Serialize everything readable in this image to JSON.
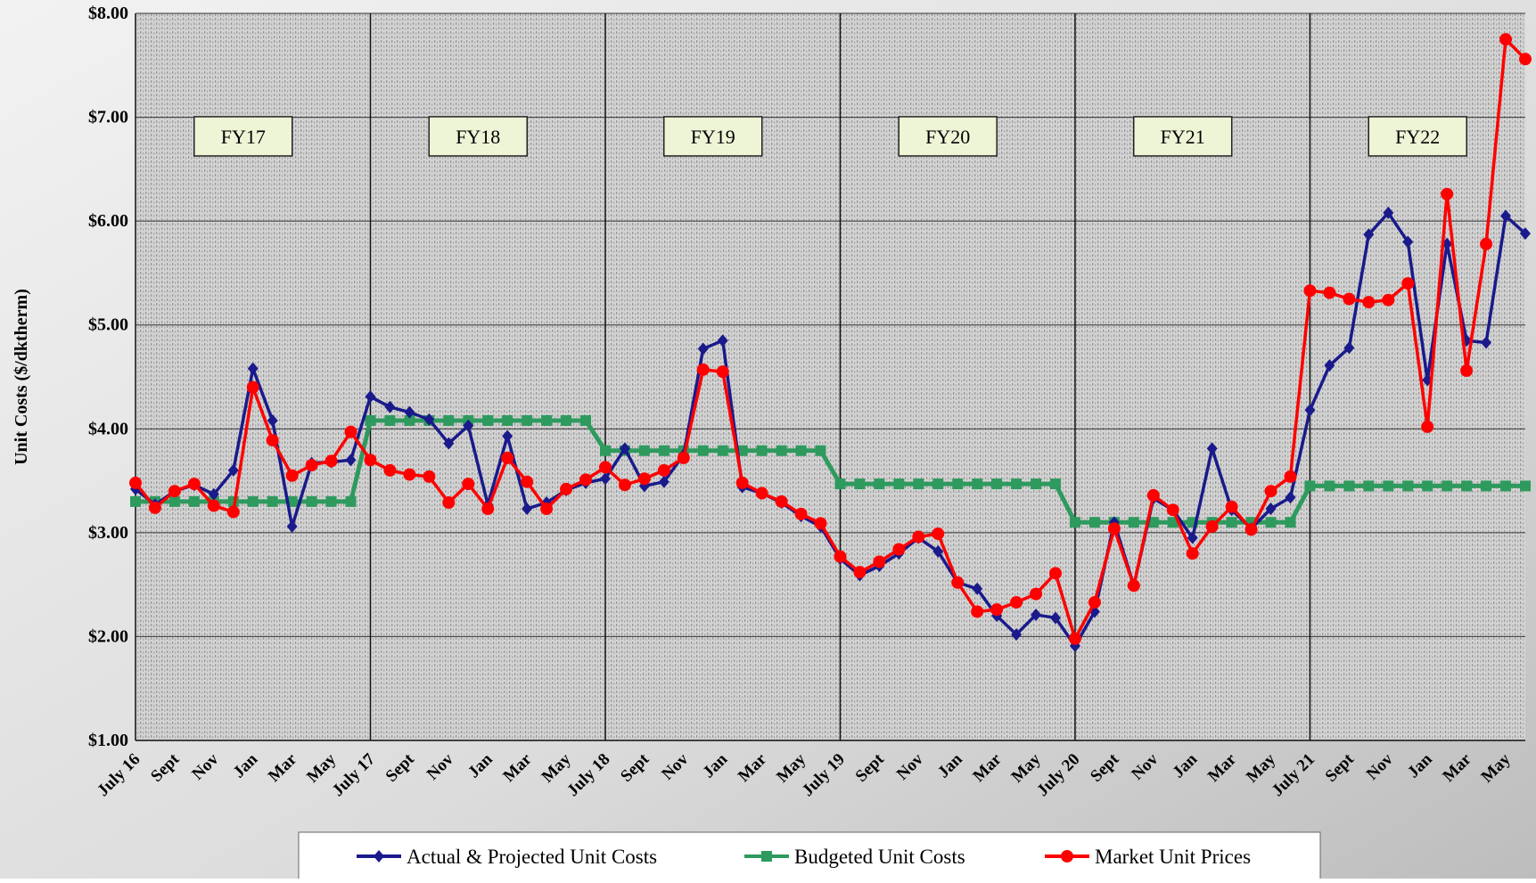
{
  "chart_data": {
    "type": "line",
    "ylabel": "Unit Costs ($/dktherm)",
    "annotations": [
      "FY17",
      "FY18",
      "FY19",
      "FY20",
      "FY21",
      "FY22"
    ],
    "categories": [
      "July 16",
      null,
      "Sept",
      null,
      "Nov",
      null,
      "Jan",
      null,
      "Mar",
      null,
      "May",
      null,
      "July 17",
      null,
      "Sept",
      null,
      "Nov",
      null,
      "Jan",
      null,
      "Mar",
      null,
      "May",
      null,
      "July 18",
      null,
      "Sept",
      null,
      "Nov",
      null,
      "Jan",
      null,
      "Mar",
      null,
      "May",
      null,
      "July 19",
      null,
      "Sept",
      null,
      "Nov",
      null,
      "Jan",
      null,
      "Mar",
      null,
      "May",
      null,
      "July 20",
      null,
      "Sept",
      null,
      "Nov",
      null,
      "Jan",
      null,
      "Mar",
      null,
      "May",
      null,
      "July 21",
      null,
      "Sept",
      null,
      "Nov",
      null,
      "Jan",
      null,
      "Mar",
      null,
      "May",
      null
    ],
    "series": [
      {
        "name": "Actual & Projected Unit Costs",
        "color": "#1a1a8c",
        "marker": "diamond",
        "values": [
          3.42,
          3.27,
          3.4,
          3.46,
          3.37,
          3.6,
          4.58,
          4.08,
          3.06,
          3.67,
          3.68,
          3.7,
          4.31,
          4.21,
          4.16,
          4.09,
          3.86,
          4.03,
          3.27,
          3.93,
          3.23,
          3.29,
          3.41,
          3.48,
          3.52,
          3.81,
          3.45,
          3.49,
          3.75,
          4.77,
          4.85,
          3.44,
          3.38,
          3.29,
          3.16,
          3.06,
          2.75,
          2.59,
          2.68,
          2.8,
          2.95,
          2.82,
          2.52,
          2.46,
          2.2,
          2.02,
          2.21,
          2.18,
          1.91,
          2.24,
          3.1,
          2.49,
          3.33,
          3.22,
          2.95,
          3.81,
          3.22,
          3.04,
          3.23,
          3.34,
          4.18,
          4.61,
          4.78,
          5.87,
          6.08,
          5.8,
          4.47,
          5.78,
          4.85,
          4.83,
          6.05,
          5.88
        ]
      },
      {
        "name": "Budgeted Unit Costs",
        "color": "#2e9a5e",
        "marker": "square",
        "values": [
          3.3,
          3.3,
          3.3,
          3.3,
          3.3,
          3.3,
          3.3,
          3.3,
          3.3,
          3.3,
          3.3,
          3.3,
          4.08,
          4.08,
          4.08,
          4.08,
          4.08,
          4.08,
          4.08,
          4.08,
          4.08,
          4.08,
          4.08,
          4.08,
          3.79,
          3.79,
          3.79,
          3.79,
          3.79,
          3.79,
          3.79,
          3.79,
          3.79,
          3.79,
          3.79,
          3.79,
          3.47,
          3.47,
          3.47,
          3.47,
          3.47,
          3.47,
          3.47,
          3.47,
          3.47,
          3.47,
          3.47,
          3.47,
          3.1,
          3.1,
          3.1,
          3.1,
          3.1,
          3.1,
          3.1,
          3.1,
          3.1,
          3.1,
          3.1,
          3.1,
          3.45,
          3.45,
          3.45,
          3.45,
          3.45,
          3.45,
          3.45,
          3.45,
          3.45,
          3.45,
          3.45,
          3.45
        ]
      },
      {
        "name": "Market Unit Prices",
        "color": "#ff0000",
        "marker": "circle",
        "values": [
          3.48,
          3.24,
          3.4,
          3.47,
          3.26,
          3.2,
          4.4,
          3.89,
          3.55,
          3.65,
          3.69,
          3.97,
          3.7,
          3.6,
          3.56,
          3.54,
          3.29,
          3.47,
          3.23,
          3.72,
          3.49,
          3.23,
          3.42,
          3.51,
          3.63,
          3.46,
          3.52,
          3.6,
          3.72,
          4.57,
          4.55,
          3.48,
          3.38,
          3.3,
          3.18,
          3.09,
          2.77,
          2.62,
          2.72,
          2.84,
          2.96,
          2.99,
          2.52,
          2.24,
          2.26,
          2.33,
          2.41,
          2.61,
          1.98,
          2.33,
          3.04,
          2.49,
          3.36,
          3.22,
          2.8,
          3.06,
          3.25,
          3.03,
          3.4,
          3.54,
          5.33,
          5.31,
          5.25,
          5.22,
          5.24,
          5.4,
          4.02,
          6.26,
          4.56,
          5.78,
          7.75,
          7.56
        ]
      }
    ],
    "ylim": [
      1,
      8
    ],
    "yticks": [
      {
        "value": 1,
        "label": "$1.00"
      },
      {
        "value": 2,
        "label": "$2.00"
      },
      {
        "value": 3,
        "label": "$3.00"
      },
      {
        "value": 4,
        "label": "$4.00"
      },
      {
        "value": 5,
        "label": "$5.00"
      },
      {
        "value": 6,
        "label": "$6.00"
      },
      {
        "value": 7,
        "label": "$7.00"
      },
      {
        "value": 8,
        "label": "$8.00"
      }
    ],
    "grid": true,
    "legend": "bottom"
  }
}
